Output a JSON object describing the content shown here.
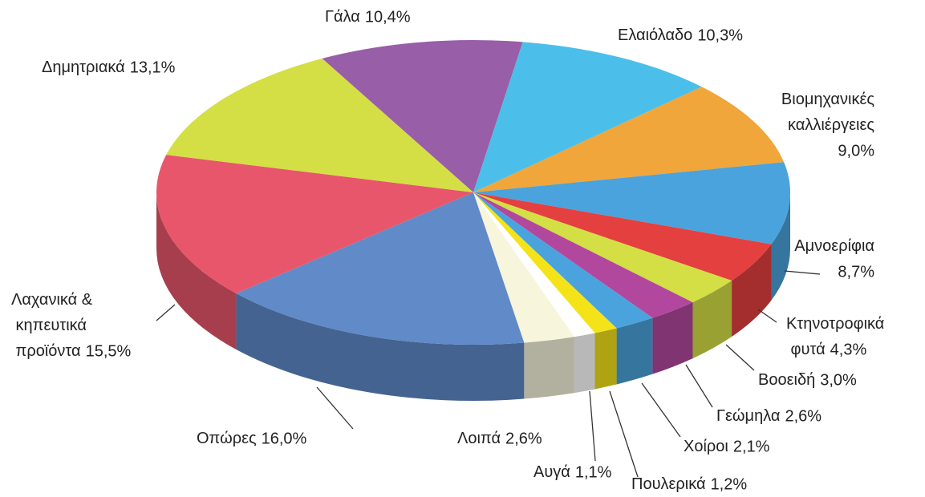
{
  "chart_data": {
    "type": "pie",
    "categories": [
      "Γάλα",
      "Ελαιόλαδο",
      "Βιομηχανικές καλλιέργειες",
      "Αμνοερίφια",
      "Κτηνοτροφικά φυτά",
      "Βοοειδή",
      "Γεώμηλα",
      "Χοίροι",
      "Πουλερικά",
      "Αυγά",
      "Λοιπά",
      "Οπώρες",
      "Λαχανικά & κηπευτικά προϊόντα",
      "Δημητριακά"
    ],
    "values": [
      10.4,
      10.3,
      9.0,
      8.7,
      4.3,
      3.0,
      2.6,
      2.1,
      1.2,
      1.1,
      2.6,
      16.0,
      15.5,
      13.1
    ],
    "value_labels": [
      "10,4%",
      "10,3%",
      "9,0%",
      "8,7%",
      "4,3%",
      "3,0%",
      "2,6%",
      "2,1%",
      "1,2%",
      "1,1%",
      "2,6%",
      "16,0%",
      "15,5%",
      "13,1%"
    ],
    "colors": [
      "#995ea8",
      "#4bbfe9",
      "#f0a63a",
      "#4aa3dc",
      "#e4403f",
      "#d3df44",
      "#b2489e",
      "#4aa3dc",
      "#f5e31a",
      "#ffffff",
      "#f7f5dc",
      "#608ac8",
      "#e8566b",
      "#d3df44"
    ]
  }
}
